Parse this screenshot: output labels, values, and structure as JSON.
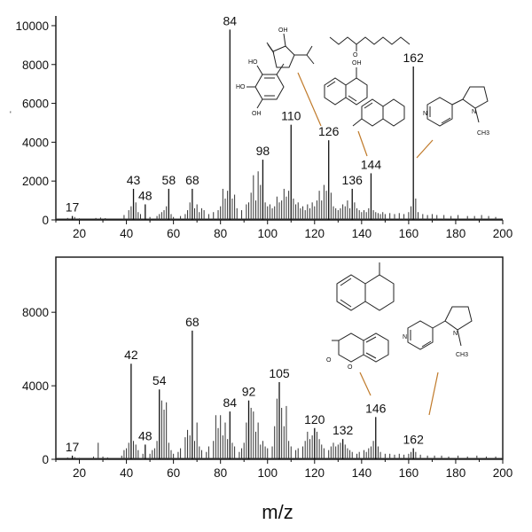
{
  "chart_data": [
    {
      "type": "bar",
      "panel": "top",
      "xlabel": "",
      "ylabel": "",
      "xlim": [
        10,
        200
      ],
      "ylim": [
        0,
        10500
      ],
      "xticks": [
        20,
        40,
        60,
        80,
        100,
        120,
        140,
        160,
        180,
        200
      ],
      "yticks": [
        0,
        2000,
        4000,
        6000,
        8000,
        10000
      ],
      "peaks": [
        {
          "mz": 17,
          "intensity": 200,
          "label": "17"
        },
        {
          "mz": 43,
          "intensity": 1600,
          "label": "43"
        },
        {
          "mz": 48,
          "intensity": 800,
          "label": "48"
        },
        {
          "mz": 58,
          "intensity": 1600,
          "label": "58"
        },
        {
          "mz": 68,
          "intensity": 1600,
          "label": "68"
        },
        {
          "mz": 84,
          "intensity": 9800,
          "label": "84"
        },
        {
          "mz": 98,
          "intensity": 3100,
          "label": "98"
        },
        {
          "mz": 110,
          "intensity": 4900,
          "label": "110"
        },
        {
          "mz": 126,
          "intensity": 4100,
          "label": "126"
        },
        {
          "mz": 136,
          "intensity": 1600,
          "label": "136"
        },
        {
          "mz": 144,
          "intensity": 2400,
          "label": "144"
        },
        {
          "mz": 162,
          "intensity": 7900,
          "label": "162"
        }
      ],
      "minor_peaks": [
        [
          15,
          100
        ],
        [
          18,
          150
        ],
        [
          20,
          80
        ],
        [
          27,
          100
        ],
        [
          29,
          120
        ],
        [
          31,
          90
        ],
        [
          39,
          250
        ],
        [
          41,
          500
        ],
        [
          42,
          700
        ],
        [
          44,
          900
        ],
        [
          45,
          400
        ],
        [
          46,
          300
        ],
        [
          50,
          150
        ],
        [
          53,
          200
        ],
        [
          54,
          300
        ],
        [
          55,
          400
        ],
        [
          56,
          500
        ],
        [
          57,
          700
        ],
        [
          59,
          300
        ],
        [
          60,
          150
        ],
        [
          63,
          200
        ],
        [
          65,
          300
        ],
        [
          66,
          500
        ],
        [
          67,
          900
        ],
        [
          69,
          600
        ],
        [
          70,
          800
        ],
        [
          71,
          400
        ],
        [
          72,
          600
        ],
        [
          73,
          500
        ],
        [
          75,
          300
        ],
        [
          77,
          400
        ],
        [
          79,
          500
        ],
        [
          80,
          700
        ],
        [
          81,
          1600
        ],
        [
          82,
          1100
        ],
        [
          83,
          1500
        ],
        [
          85,
          1100
        ],
        [
          86,
          1300
        ],
        [
          87,
          600
        ],
        [
          89,
          500
        ],
        [
          91,
          800
        ],
        [
          92,
          900
        ],
        [
          93,
          1400
        ],
        [
          94,
          2300
        ],
        [
          95,
          1000
        ],
        [
          96,
          2500
        ],
        [
          97,
          1800
        ],
        [
          99,
          900
        ],
        [
          100,
          700
        ],
        [
          101,
          800
        ],
        [
          102,
          600
        ],
        [
          103,
          700
        ],
        [
          104,
          1200
        ],
        [
          105,
          900
        ],
        [
          106,
          1000
        ],
        [
          107,
          1600
        ],
        [
          108,
          1200
        ],
        [
          109,
          1500
        ],
        [
          111,
          1100
        ],
        [
          112,
          800
        ],
        [
          113,
          900
        ],
        [
          114,
          600
        ],
        [
          115,
          700
        ],
        [
          116,
          500
        ],
        [
          117,
          800
        ],
        [
          118,
          600
        ],
        [
          119,
          900
        ],
        [
          120,
          700
        ],
        [
          121,
          1000
        ],
        [
          122,
          1500
        ],
        [
          123,
          1000
        ],
        [
          124,
          1800
        ],
        [
          125,
          1500
        ],
        [
          127,
          1400
        ],
        [
          128,
          700
        ],
        [
          129,
          600
        ],
        [
          130,
          500
        ],
        [
          131,
          600
        ],
        [
          132,
          800
        ],
        [
          133,
          700
        ],
        [
          134,
          1000
        ],
        [
          135,
          600
        ],
        [
          137,
          900
        ],
        [
          138,
          600
        ],
        [
          139,
          500
        ],
        [
          140,
          400
        ],
        [
          141,
          500
        ],
        [
          142,
          400
        ],
        [
          143,
          600
        ],
        [
          145,
          500
        ],
        [
          146,
          400
        ],
        [
          147,
          350
        ],
        [
          148,
          300
        ],
        [
          149,
          400
        ],
        [
          150,
          300
        ],
        [
          152,
          350
        ],
        [
          154,
          300
        ],
        [
          156,
          350
        ],
        [
          158,
          300
        ],
        [
          160,
          400
        ],
        [
          161,
          700
        ],
        [
          163,
          1100
        ],
        [
          164,
          400
        ],
        [
          166,
          300
        ],
        [
          168,
          250
        ],
        [
          170,
          300
        ],
        [
          172,
          250
        ],
        [
          175,
          250
        ],
        [
          178,
          200
        ],
        [
          181,
          250
        ],
        [
          185,
          200
        ],
        [
          188,
          200
        ],
        [
          191,
          250
        ],
        [
          194,
          200
        ],
        [
          197,
          150
        ]
      ]
    },
    {
      "type": "bar",
      "panel": "bottom",
      "xlabel": "m/z",
      "ylabel": "",
      "xlim": [
        10,
        200
      ],
      "ylim": [
        0,
        11000
      ],
      "xticks": [
        20,
        40,
        60,
        80,
        100,
        120,
        140,
        160,
        180,
        200
      ],
      "yticks": [
        0,
        4000,
        8000
      ],
      "peaks": [
        {
          "mz": 17,
          "intensity": 200,
          "label": "17"
        },
        {
          "mz": 42,
          "intensity": 5200,
          "label": "42"
        },
        {
          "mz": 48,
          "intensity": 800,
          "label": "48"
        },
        {
          "mz": 54,
          "intensity": 3800,
          "label": "54"
        },
        {
          "mz": 68,
          "intensity": 7000,
          "label": "68"
        },
        {
          "mz": 84,
          "intensity": 2600,
          "label": "84"
        },
        {
          "mz": 92,
          "intensity": 3200,
          "label": "92"
        },
        {
          "mz": 105,
          "intensity": 4200,
          "label": "105"
        },
        {
          "mz": 120,
          "intensity": 1700,
          "label": "120"
        },
        {
          "mz": 132,
          "intensity": 1100,
          "label": "132"
        },
        {
          "mz": 146,
          "intensity": 2300,
          "label": "146"
        },
        {
          "mz": 162,
          "intensity": 600,
          "label": "162"
        }
      ],
      "minor_peaks": [
        [
          15,
          100
        ],
        [
          18,
          120
        ],
        [
          20,
          80
        ],
        [
          26,
          150
        ],
        [
          28,
          900
        ],
        [
          30,
          150
        ],
        [
          32,
          100
        ],
        [
          38,
          200
        ],
        [
          39,
          500
        ],
        [
          40,
          600
        ],
        [
          41,
          900
        ],
        [
          43,
          1000
        ],
        [
          44,
          800
        ],
        [
          45,
          500
        ],
        [
          47,
          300
        ],
        [
          50,
          300
        ],
        [
          51,
          500
        ],
        [
          52,
          600
        ],
        [
          53,
          1000
        ],
        [
          55,
          3200
        ],
        [
          56,
          2700
        ],
        [
          57,
          3100
        ],
        [
          58,
          900
        ],
        [
          59,
          500
        ],
        [
          60,
          300
        ],
        [
          62,
          400
        ],
        [
          63,
          600
        ],
        [
          65,
          1200
        ],
        [
          66,
          1600
        ],
        [
          67,
          1300
        ],
        [
          69,
          1000
        ],
        [
          70,
          2000
        ],
        [
          71,
          700
        ],
        [
          72,
          500
        ],
        [
          74,
          400
        ],
        [
          75,
          700
        ],
        [
          77,
          1000
        ],
        [
          78,
          2400
        ],
        [
          79,
          1700
        ],
        [
          80,
          2400
        ],
        [
          81,
          1300
        ],
        [
          82,
          2000
        ],
        [
          83,
          1100
        ],
        [
          85,
          900
        ],
        [
          86,
          700
        ],
        [
          88,
          400
        ],
        [
          89,
          600
        ],
        [
          90,
          900
        ],
        [
          91,
          2000
        ],
        [
          93,
          2800
        ],
        [
          94,
          2600
        ],
        [
          95,
          1500
        ],
        [
          96,
          2000
        ],
        [
          97,
          800
        ],
        [
          98,
          1000
        ],
        [
          99,
          700
        ],
        [
          100,
          600
        ],
        [
          102,
          700
        ],
        [
          103,
          1800
        ],
        [
          104,
          3300
        ],
        [
          106,
          2800
        ],
        [
          107,
          1800
        ],
        [
          108,
          2900
        ],
        [
          109,
          1000
        ],
        [
          110,
          700
        ],
        [
          112,
          500
        ],
        [
          113,
          600
        ],
        [
          115,
          700
        ],
        [
          116,
          1000
        ],
        [
          117,
          1500
        ],
        [
          118,
          1100
        ],
        [
          119,
          1300
        ],
        [
          121,
          1500
        ],
        [
          122,
          1100
        ],
        [
          123,
          800
        ],
        [
          124,
          600
        ],
        [
          126,
          500
        ],
        [
          127,
          700
        ],
        [
          128,
          900
        ],
        [
          129,
          700
        ],
        [
          130,
          800
        ],
        [
          131,
          900
        ],
        [
          133,
          800
        ],
        [
          134,
          600
        ],
        [
          135,
          500
        ],
        [
          136,
          400
        ],
        [
          138,
          300
        ],
        [
          139,
          400
        ],
        [
          141,
          500
        ],
        [
          142,
          400
        ],
        [
          143,
          600
        ],
        [
          144,
          700
        ],
        [
          145,
          1000
        ],
        [
          147,
          700
        ],
        [
          148,
          400
        ],
        [
          150,
          300
        ],
        [
          152,
          300
        ],
        [
          154,
          250
        ],
        [
          156,
          300
        ],
        [
          158,
          250
        ],
        [
          160,
          300
        ],
        [
          161,
          400
        ],
        [
          163,
          400
        ],
        [
          165,
          250
        ],
        [
          168,
          200
        ],
        [
          171,
          200
        ],
        [
          174,
          200
        ],
        [
          177,
          150
        ],
        [
          181,
          200
        ],
        [
          185,
          150
        ],
        [
          189,
          200
        ],
        [
          193,
          150
        ],
        [
          197,
          150
        ]
      ]
    }
  ],
  "structure_labels": {
    "top_hydroxyl_1": "OH",
    "top_hydroxyl_2": "HO",
    "top_hydroxyl_3": "HO",
    "top_hydroxyl_4": "OH",
    "top_naphthol": "OH",
    "top_ester_o": "O",
    "top_pyridine_n": "N",
    "top_pyrrolidine_n": "N",
    "top_methyl": "CH3",
    "bottom_pyridine_n": "N",
    "bottom_pyrrolidine_n": "N",
    "bottom_methyl": "CH3",
    "bottom_lactone_o1": "O",
    "bottom_lactone_o2": "O"
  },
  "stray_mark": "'"
}
